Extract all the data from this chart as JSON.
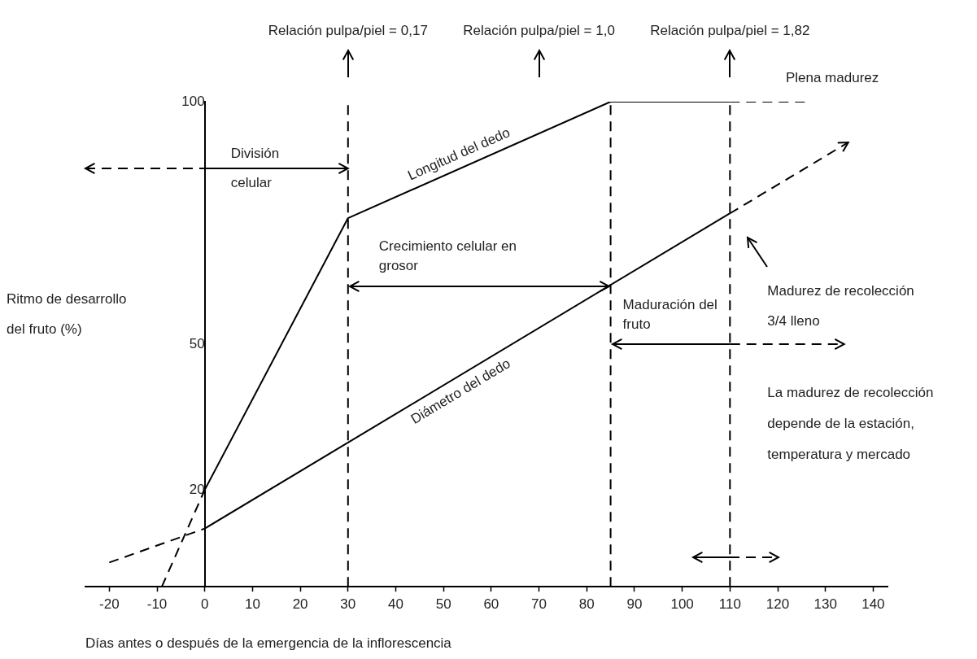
{
  "chart_data": {
    "type": "line",
    "xlabel": "Días antes o después de la emergencia de la inflorescencia",
    "ylabel": "Ritmo de desarrollo del fruto (%)",
    "xlim": [
      -25,
      143
    ],
    "ylim": [
      0,
      100
    ],
    "xticks": [
      -20,
      -10,
      0,
      10,
      20,
      30,
      40,
      50,
      60,
      70,
      80,
      90,
      100,
      110,
      120,
      130,
      140
    ],
    "yticks": [
      20,
      50,
      100
    ],
    "grid": false,
    "legend": false,
    "marker": "none",
    "series": [
      {
        "name": "Longitud del dedo",
        "color": "#000000",
        "x": [
          0,
          30,
          85,
          110
        ],
        "values": [
          20,
          76,
          100,
          100
        ],
        "line_style": "solid"
      },
      {
        "color": "#000000",
        "x": [
          -9,
          0
        ],
        "values": [
          0,
          20
        ],
        "line_style": "dashed"
      },
      {
        "color": "#000000",
        "x": [
          110,
          126
        ],
        "values": [
          100,
          100
        ],
        "line_style": "dashed"
      },
      {
        "name": "Diámetro del dedo",
        "color": "#000000",
        "x": [
          0,
          110
        ],
        "values": [
          12,
          77
        ],
        "line_style": "solid"
      },
      {
        "color": "#000000",
        "x": [
          -20,
          0
        ],
        "values": [
          5,
          12
        ],
        "line_style": "dashed"
      }
    ],
    "ref_lines": [
      {
        "axis": "x",
        "value": 30,
        "line_style": "dashed"
      },
      {
        "axis": "x",
        "value": 85,
        "line_style": "dashed"
      },
      {
        "axis": "x",
        "value": 110,
        "line_style": "dashed"
      }
    ],
    "annotations": [
      "Relación pulpa/piel = 0,17",
      "Relación pulpa/piel = 1,0",
      "Relación pulpa/piel = 1,82",
      "División celular",
      {
        "text": "Crecimiento celular en grosor",
        "x": 30,
        "y": 62
      },
      {
        "text": "Maduración del fruto",
        "x": 85,
        "y": 50
      },
      "Madurez de recolección 3/4 lleno",
      "Plena madurez",
      "La madurez de recolección depende de la estación, temperatura y mercado"
    ]
  }
}
